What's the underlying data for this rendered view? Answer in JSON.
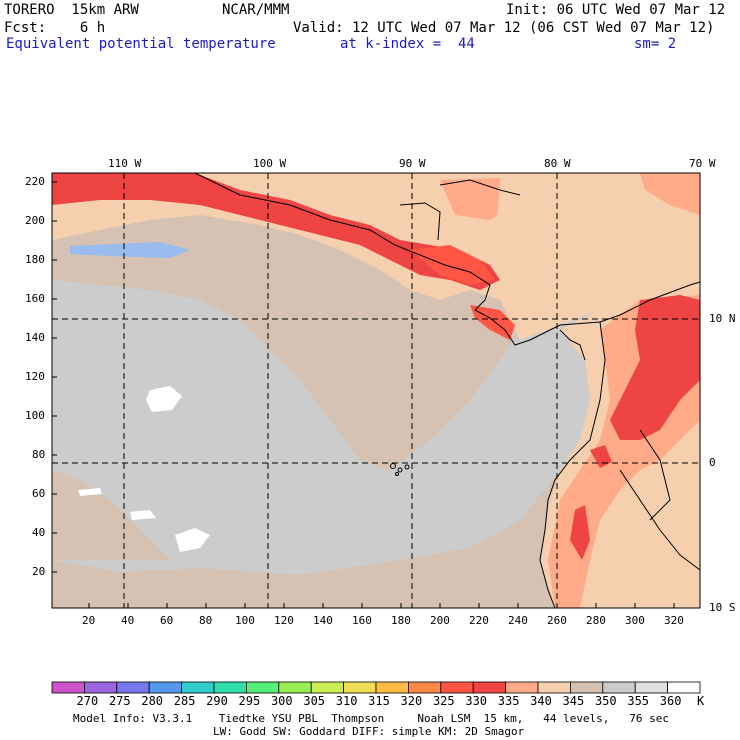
{
  "header": {
    "model": "TORERO  15km ARW",
    "org": "NCAR/MMM",
    "init": "Init: 06 UTC Wed 07 Mar 12",
    "fcst": "Fcst:    6 h",
    "valid": "Valid: 12 UTC Wed 07 Mar 12 (06 CST Wed 07 Mar 12)",
    "field": "Equivalent potential temperature",
    "level": "at k-index =  44",
    "smooth": "sm= 2"
  },
  "axes": {
    "top_lon_labels": [
      "110 W",
      "100 W",
      "90 W",
      "80 W",
      "70 W"
    ],
    "right_lat_labels": [
      "10 N",
      "0",
      "10 S"
    ],
    "left_ticks": [
      "220",
      "200",
      "180",
      "160",
      "140",
      "120",
      "100",
      "80",
      "60",
      "40",
      "20"
    ],
    "bottom_ticks": [
      "20",
      "40",
      "60",
      "80",
      "100",
      "120",
      "140",
      "160",
      "180",
      "200",
      "220",
      "240",
      "260",
      "280",
      "300",
      "320"
    ]
  },
  "colorbar": {
    "units": "K",
    "labels": [
      "270",
      "275",
      "280",
      "285",
      "290",
      "295",
      "300",
      "305",
      "310",
      "315",
      "320",
      "325",
      "330",
      "335",
      "340",
      "345",
      "350",
      "355",
      "360"
    ],
    "colors": [
      "#cc55cc",
      "#9966dd",
      "#7777ee",
      "#5599ee",
      "#33cccc",
      "#33ddaa",
      "#55ee77",
      "#99ee55",
      "#ccee55",
      "#eedd55",
      "#ffbb44",
      "#ff8844",
      "#ff5544",
      "#ee4444",
      "#ffaa88",
      "#f5cfae",
      "#d5c2b2",
      "#cccccc",
      "#e0e0e0",
      "#ffffff"
    ]
  },
  "footer": {
    "line1": "Model Info: V3.3.1    Tiedtke YSU PBL  Thompson     Noah LSM  15 km,   44 levels,   76 sec",
    "line2": "LW: Godd SW: Goddard DIFF: simple KM: 2D Smagor"
  },
  "map_colors": {
    "ocean_cold": "#cccccc",
    "ocean_mild": "#d5c2b2",
    "land_warm": "#f5cfae",
    "warm": "#ffaa88",
    "hot": "#ee4444",
    "hotter": "#ff5544",
    "white_patch": "#ffffff",
    "blue_patch": "#99bbee"
  }
}
